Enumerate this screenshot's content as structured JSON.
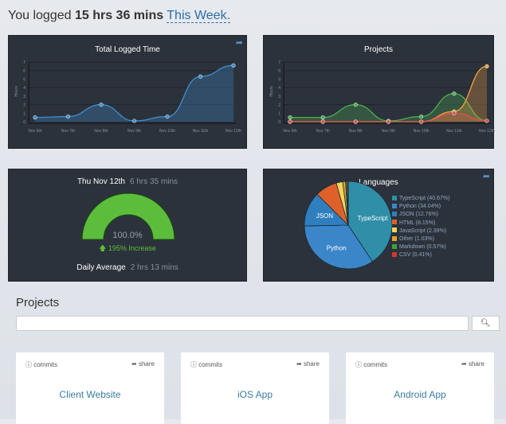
{
  "headline": {
    "prefix": "You logged",
    "total": "15 hrs 36 mins",
    "period": "This Week."
  },
  "total_chart": {
    "title": "Total Logged Time",
    "share_icon": "share-icon"
  },
  "projects_chart": {
    "title": "Projects"
  },
  "chart_data": [
    {
      "type": "area",
      "title": "Total Logged Time",
      "ylabel": "Hours",
      "ylim": [
        0,
        7
      ],
      "categories": [
        "Nov 6th",
        "Nov 7th",
        "Nov 8th",
        "Nov 9th",
        "Nov 10th",
        "Nov 11th",
        "Nov 12th"
      ],
      "series": [
        {
          "values": [
            0.5,
            0.6,
            2.0,
            0.1,
            0.6,
            5.3,
            6.6
          ],
          "color": "#3f8fd0"
        }
      ]
    },
    {
      "type": "area",
      "title": "Projects",
      "ylabel": "Hours",
      "ylim": [
        0,
        7
      ],
      "categories": [
        "Nov 6th",
        "Nov 7th",
        "Nov 8th",
        "Nov 9th",
        "Nov 10th",
        "Nov 11th",
        "Nov 12th"
      ],
      "series": [
        {
          "values": [
            0.5,
            0.5,
            2.0,
            0.1,
            0.6,
            3.3,
            0.1
          ],
          "color": "#4caf50"
        },
        {
          "values": [
            0,
            0,
            0,
            0,
            0,
            1.2,
            6.5
          ],
          "color": "#f0a040"
        },
        {
          "values": [
            0,
            0,
            0,
            0,
            0,
            1.0,
            0.1
          ],
          "color": "#d9534f"
        }
      ]
    },
    {
      "type": "pie",
      "title": "Languages",
      "labels": [
        "TypeScript",
        "Python",
        "JSON",
        "HTML",
        "JavaScript",
        "Other",
        "Markdown",
        "CSV"
      ],
      "values": [
        40.67,
        34.04,
        12.76,
        8.15,
        2.39,
        1.03,
        0.57,
        0.41
      ],
      "legend": [
        "TypeScript (40.67%)",
        "Python (34.04%)",
        "JSON (12.76%)",
        "HTML (8.15%)",
        "JavaScript (2.39%)",
        "Other (1.03%)",
        "Markdown (0.57%)",
        "CSV (0.41%)"
      ],
      "colors": [
        "#2f8fa8",
        "#3a86c8",
        "#2f7fbf",
        "#e0602a",
        "#f2d45a",
        "#e8a030",
        "#3fa040",
        "#d03a2a"
      ],
      "legend_placement": "right"
    }
  ],
  "gauge": {
    "day": "Thu Nov 12th",
    "day_time": "6 hrs 35 mins",
    "percent": "100.0%",
    "fill": 1.0,
    "change": "195% Increase",
    "avg_label": "Daily Average",
    "avg_time": "2 hrs 13 mins",
    "color": "#5cbd3c"
  },
  "languages": {
    "title": "Languages"
  },
  "projects": {
    "heading": "Projects",
    "search_placeholder": "",
    "search_icon": "search-icon",
    "cards": [
      {
        "name": "Client Website",
        "commits": "commits",
        "share": "share"
      },
      {
        "name": "iOS App",
        "commits": "commits",
        "share": "share"
      },
      {
        "name": "Android App",
        "commits": "commits",
        "share": "share"
      }
    ]
  }
}
